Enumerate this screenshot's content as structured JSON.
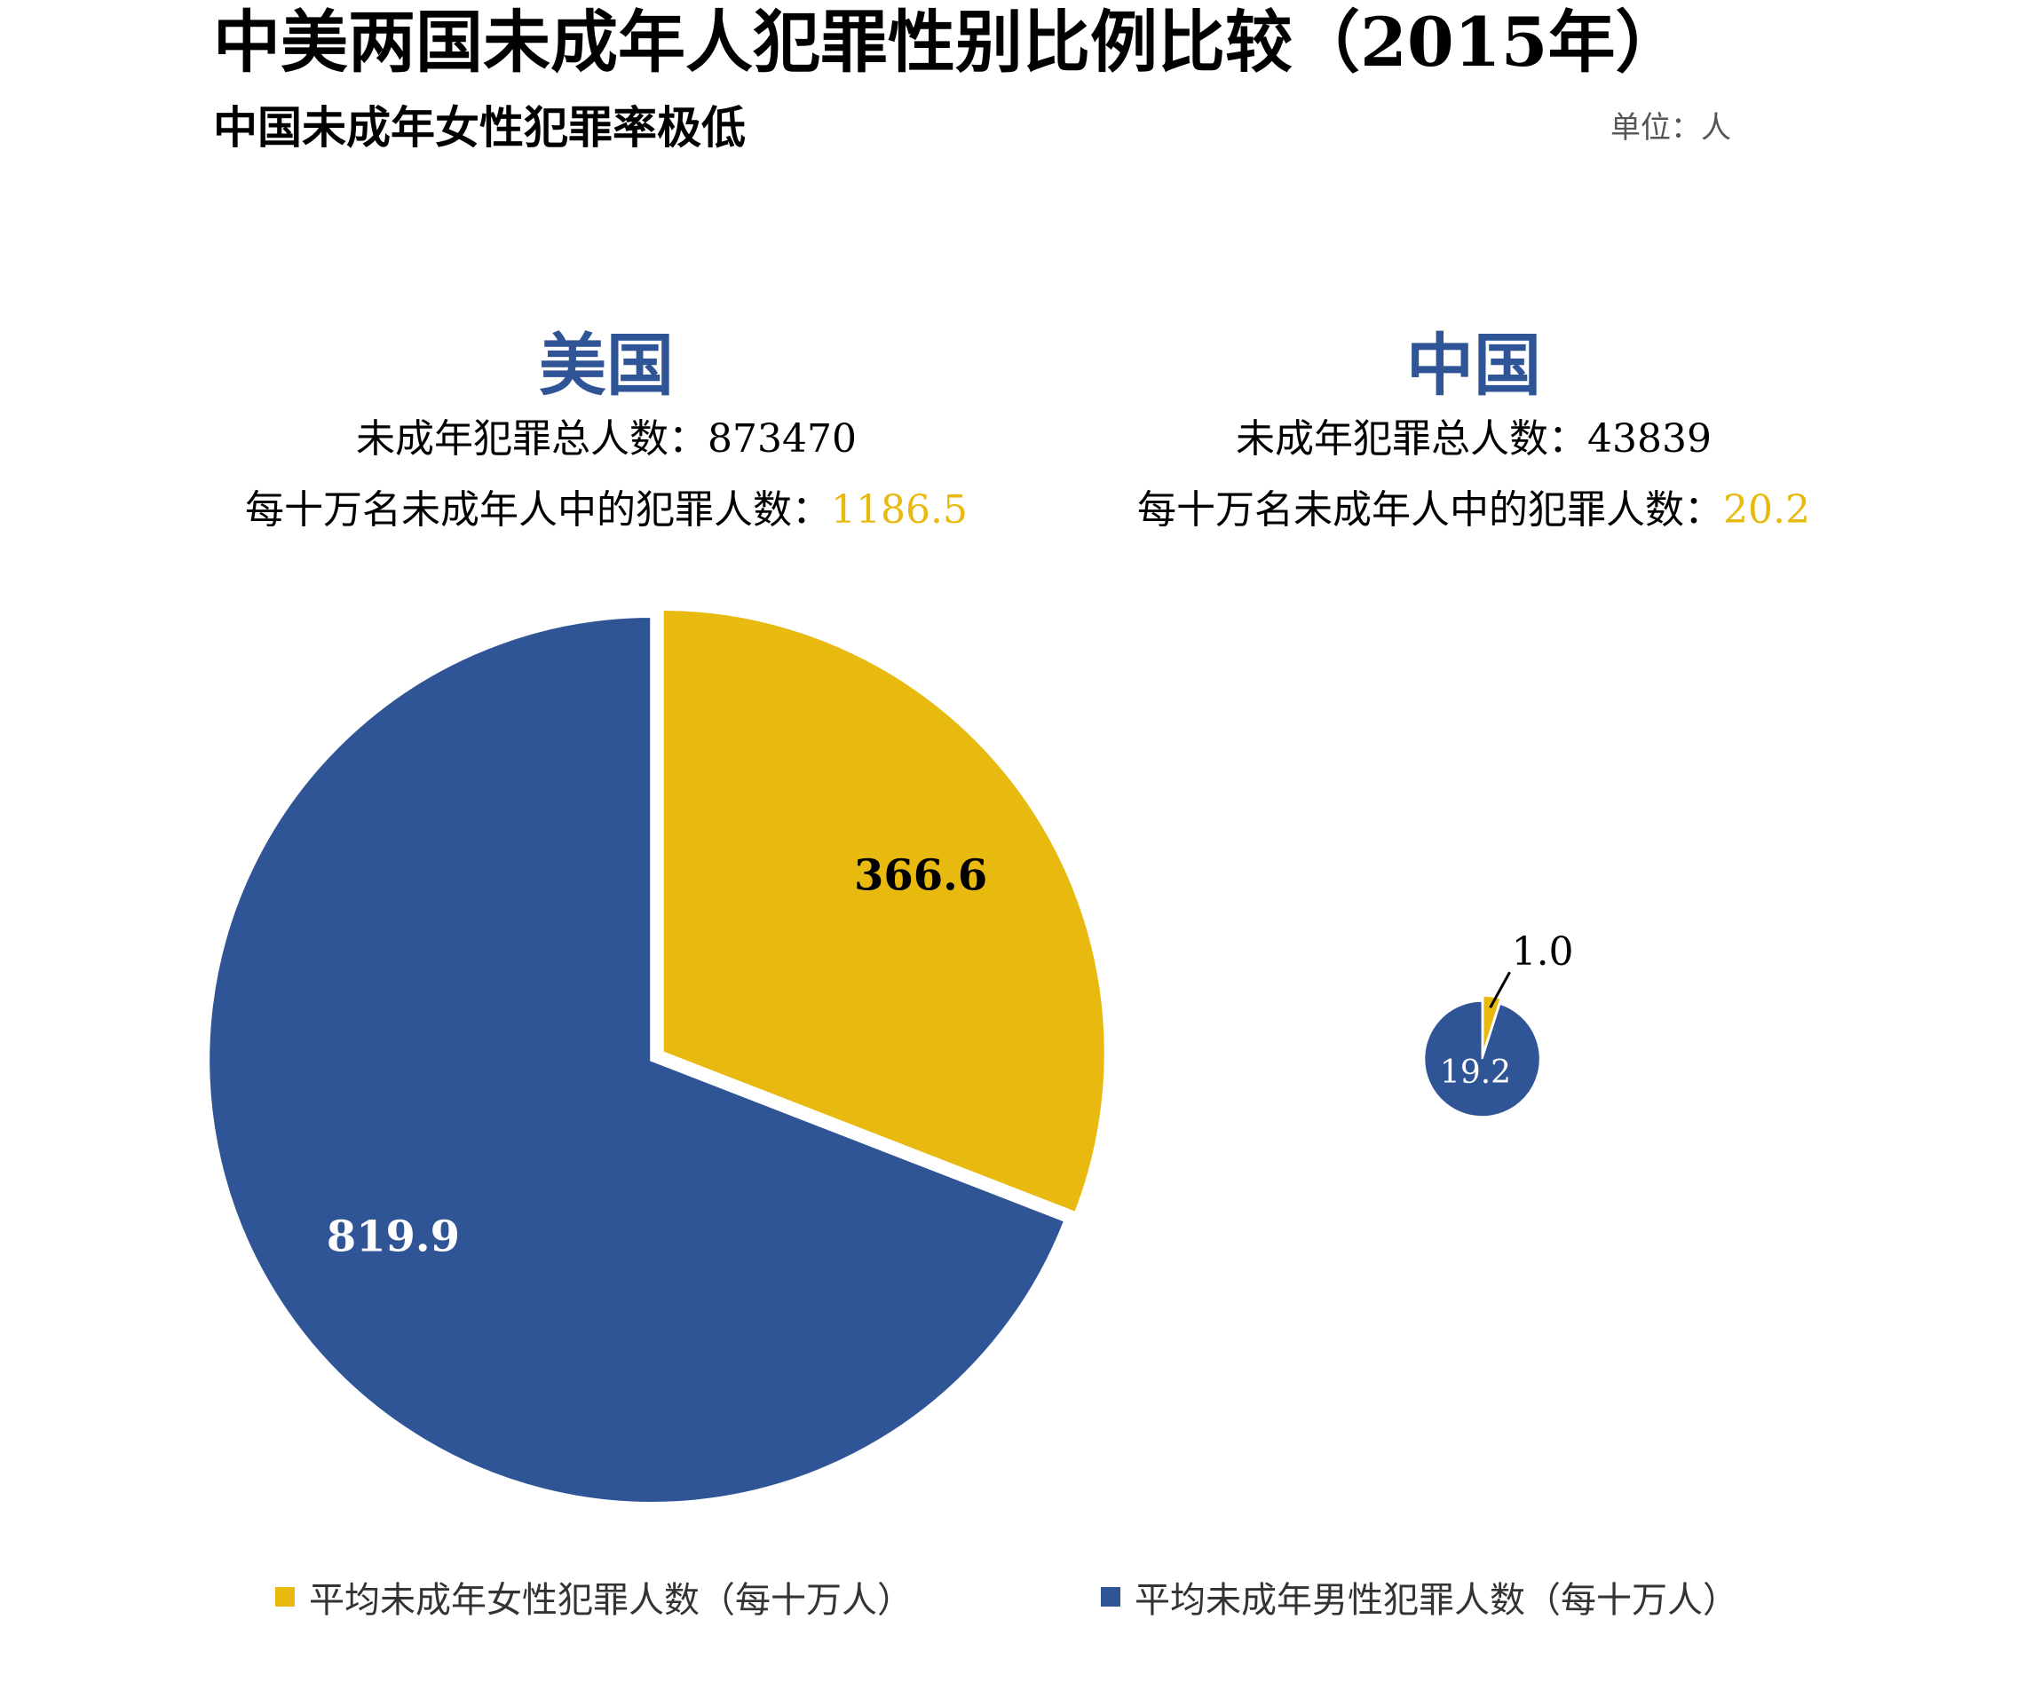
{
  "title": "中美两国未成年人犯罪性别比例比较（2015年）",
  "subtitle": "中国未成年女性犯罪率极低",
  "unit": "单位：人",
  "colors": {
    "female": "#e8b90f",
    "male": "#2f5597",
    "accent": "#2f5597"
  },
  "countries": [
    {
      "name": "美国",
      "total_label": "未成年犯罪总人数：",
      "total": "873470",
      "rate_label": "每十万名未成年人中的犯罪人数：",
      "rate": "1186.5"
    },
    {
      "name": "中国",
      "total_label": "未成年犯罪总人数：",
      "total": "43839",
      "rate_label": "每十万名未成年人中的犯罪人数：",
      "rate": "20.2"
    }
  ],
  "legend": [
    {
      "label": "平均未成年女性犯罪人数（每十万人）",
      "color": "#e8b90f"
    },
    {
      "label": "平均未成年男性犯罪人数（每十万人）",
      "color": "#2f5597"
    }
  ],
  "chart_data": [
    {
      "type": "pie",
      "title": "美国",
      "categories": [
        "平均未成年女性犯罪人数（每十万人）",
        "平均未成年男性犯罪人数（每十万人）"
      ],
      "values": [
        366.6,
        819.9
      ],
      "labels": [
        "366.6",
        "819.9"
      ]
    },
    {
      "type": "pie",
      "title": "中国",
      "categories": [
        "平均未成年女性犯罪人数（每十万人）",
        "平均未成年男性犯罪人数（每十万人）"
      ],
      "values": [
        1.0,
        19.2
      ],
      "labels": [
        "1.0",
        "19.2"
      ]
    }
  ]
}
